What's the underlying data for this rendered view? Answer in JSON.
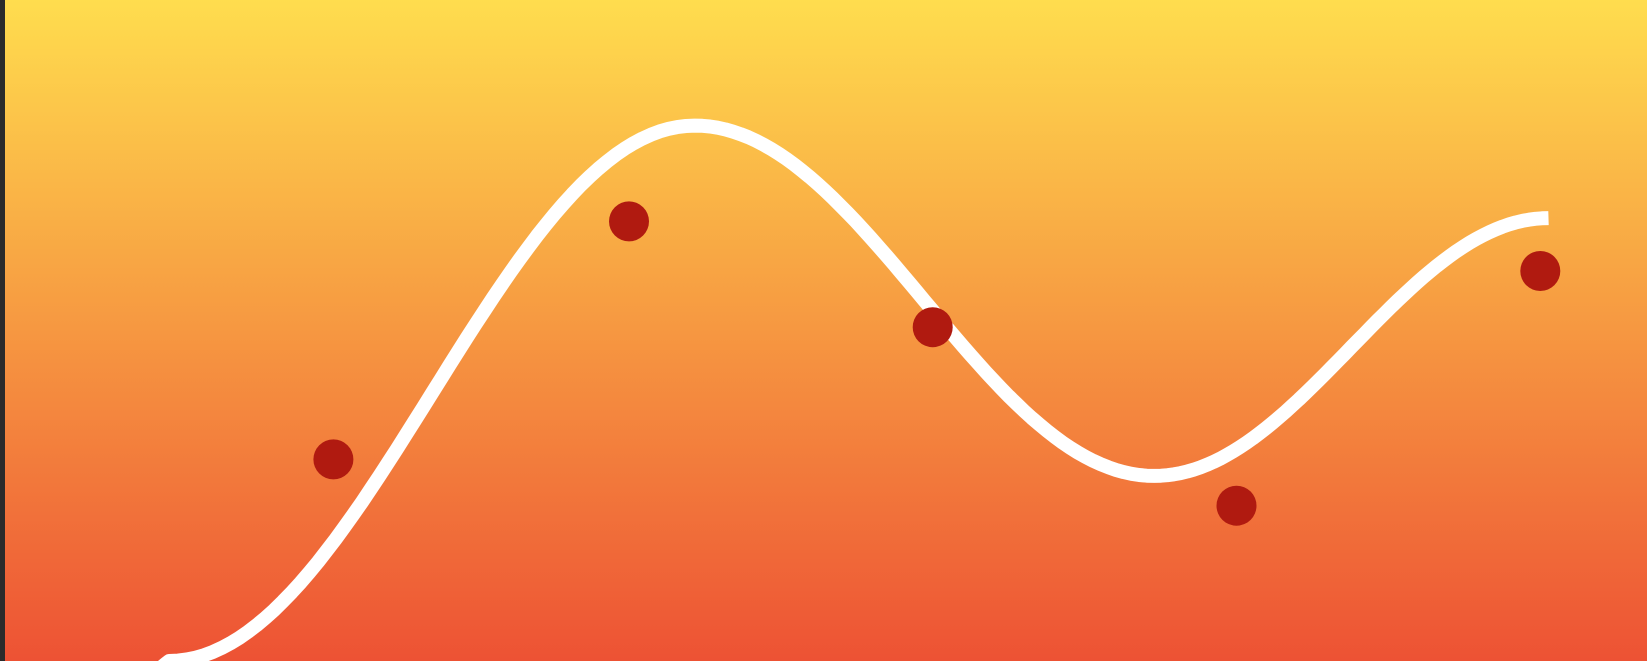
{
  "colors": {
    "background_top": "#FFDD4E",
    "background_bottom": "#ED5234",
    "curve": "#FFFFFF",
    "points": "#B01A10",
    "page_edge": "#2B2B2B"
  },
  "chart_data": {
    "type": "scatter",
    "title": "",
    "xlabel": "",
    "ylabel": "",
    "grid": false,
    "legend": "none",
    "xlim": [
      0,
      1
    ],
    "ylim": [
      0,
      1
    ],
    "series": [
      {
        "kind": "points",
        "x": [
          0.2,
          0.38,
          0.565,
          0.75,
          0.935
        ],
        "y": [
          0.305,
          0.665,
          0.505,
          0.235,
          0.59
        ]
      },
      {
        "kind": "smooth-curve",
        "x": [
          0.1,
          0.42,
          0.7,
          0.94
        ],
        "y": [
          0.0,
          0.81,
          0.28,
          0.67
        ]
      }
    ]
  }
}
